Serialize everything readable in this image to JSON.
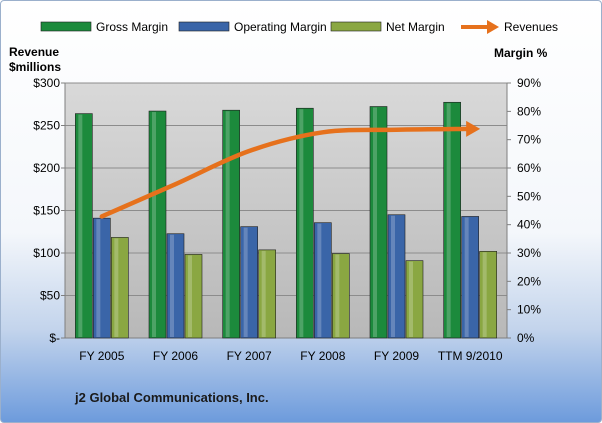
{
  "chart_data": {
    "type": "bar",
    "categories": [
      "FY 2005",
      "FY 2006",
      "FY 2007",
      "FY 2008",
      "FY 2009",
      "TTM 9/2010"
    ],
    "series": [
      {
        "name": "Gross Margin",
        "axis": "right",
        "kind": "bar",
        "color": "#1c8a3c",
        "values": [
          79.2,
          80.1,
          80.4,
          81.1,
          81.7,
          83.2
        ]
      },
      {
        "name": "Operating Margin",
        "axis": "right",
        "kind": "bar",
        "color": "#3a65a8",
        "values": [
          42.3,
          36.8,
          39.3,
          40.7,
          43.5,
          42.9
        ]
      },
      {
        "name": "Net Margin",
        "axis": "right",
        "kind": "bar",
        "color": "#8aa742",
        "values": [
          35.5,
          29.5,
          31.1,
          29.8,
          27.3,
          30.6
        ]
      },
      {
        "name": "Revenues",
        "axis": "left",
        "kind": "line",
        "color": "#e6711c",
        "values": [
          143,
          181,
          220,
          242,
          245,
          246
        ]
      }
    ],
    "left_axis": {
      "label_line1": "Revenue",
      "label_line2": "$millions",
      "ticks": [
        0,
        50,
        100,
        150,
        200,
        250,
        300
      ],
      "tick_labels": [
        "$-",
        "$50",
        "$100",
        "$150",
        "$200",
        "$250",
        "$300"
      ],
      "ylim": [
        0,
        300
      ]
    },
    "right_axis": {
      "label": "Margin %",
      "ticks": [
        0,
        10,
        20,
        30,
        40,
        50,
        60,
        70,
        80,
        90
      ],
      "tick_labels": [
        "0%",
        "10%",
        "20%",
        "30%",
        "40%",
        "50%",
        "60%",
        "70%",
        "80%",
        "90%"
      ],
      "ylim": [
        0,
        90
      ]
    },
    "grid": true,
    "legend_position": "top",
    "footer": "j2 Global Communications, Inc.",
    "plot_background": "#c0c0c0"
  }
}
